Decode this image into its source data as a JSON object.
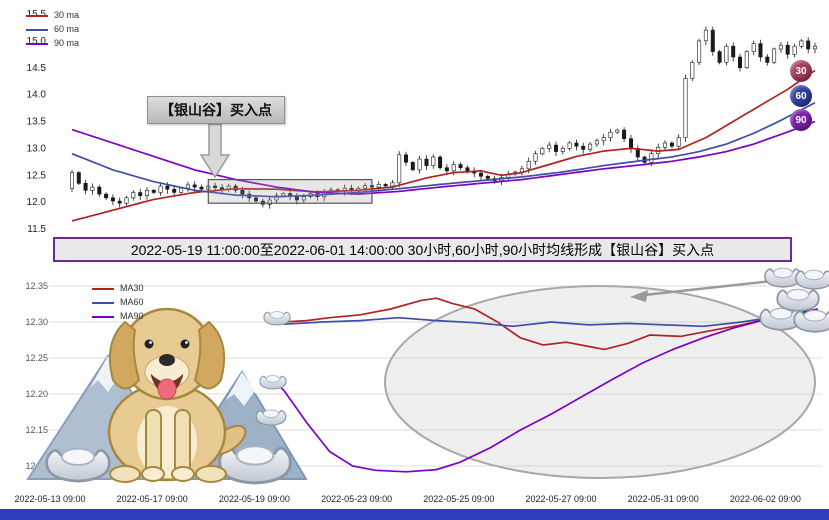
{
  "page": {
    "background": "#ffffff",
    "footer_bar_color": "#2e3cb8"
  },
  "top_chart": {
    "legend": [
      {
        "label": "30 ma",
        "color": "#b22222"
      },
      {
        "label": "60 ma",
        "color": "#3f4dab"
      },
      {
        "label": "90 ma",
        "color": "#7d00c4"
      }
    ],
    "annotation": {
      "text": "【银山谷】买入点"
    },
    "badges": [
      {
        "label": "30",
        "color": "#a73b5c"
      },
      {
        "label": "60",
        "color": "#2e3f9e"
      },
      {
        "label": "90",
        "color": "#7a1fa8"
      }
    ]
  },
  "banner": {
    "text": "2022-05-19 11:00:00至2022-06-01 14:00:00 30小时,60小时,90小时均线形成【银山谷】买入点"
  },
  "bottom_chart": {
    "legend": [
      {
        "label": "MA30",
        "color": "#b22222"
      },
      {
        "label": "MA60",
        "color": "#3f4dab"
      },
      {
        "label": "MA90",
        "color": "#7d00c4"
      }
    ]
  },
  "chart_data": [
    {
      "type": "candlestick",
      "title": "",
      "ylim": [
        11.5,
        15.5
      ],
      "yticks": [
        15.5,
        15.0,
        14.5,
        14.0,
        13.5,
        13.0,
        12.5,
        12.0,
        11.5
      ],
      "grid": false,
      "legend_position": "upper-left",
      "open_first": 12.25,
      "closes": [
        12.55,
        12.35,
        12.22,
        12.28,
        12.15,
        12.08,
        12.02,
        11.98,
        12.08,
        12.18,
        12.12,
        12.22,
        12.18,
        12.3,
        12.24,
        12.18,
        12.26,
        12.32,
        12.28,
        12.24,
        12.3,
        12.27,
        12.24,
        12.3,
        12.22,
        12.15,
        12.08,
        12.02,
        11.96,
        12.04,
        12.12,
        12.16,
        12.1,
        12.04,
        12.1,
        12.16,
        12.1,
        12.18,
        12.23,
        12.2,
        12.26,
        12.21,
        12.26,
        12.31,
        12.28,
        12.33,
        12.3,
        12.36,
        12.88,
        12.74,
        12.6,
        12.8,
        12.68,
        12.84,
        12.64,
        12.58,
        12.7,
        12.64,
        12.58,
        12.54,
        12.48,
        12.44,
        12.4,
        12.46,
        12.52,
        12.56,
        12.62,
        12.76,
        12.9,
        13.0,
        13.06,
        12.94,
        13.0,
        13.1,
        13.04,
        12.98,
        13.08,
        13.14,
        13.2,
        13.3,
        13.34,
        13.18,
        13.0,
        12.84,
        12.74,
        12.9,
        13.02,
        13.1,
        13.04,
        13.2,
        14.3,
        14.6,
        15.0,
        15.2,
        14.8,
        14.6,
        14.9,
        14.7,
        14.5,
        14.8,
        14.95,
        14.7,
        14.6,
        14.85,
        14.92,
        14.75,
        14.9,
        15.0,
        14.85,
        14.9
      ],
      "series": [
        {
          "name": "30 ma",
          "color": "#b22222",
          "keypoints": [
            [
              0,
              11.65
            ],
            [
              6,
              11.85
            ],
            [
              12,
              12.05
            ],
            [
              18,
              12.18
            ],
            [
              24,
              12.25
            ],
            [
              30,
              12.24
            ],
            [
              36,
              12.19
            ],
            [
              42,
              12.22
            ],
            [
              47,
              12.28
            ],
            [
              52,
              12.45
            ],
            [
              56,
              12.55
            ],
            [
              60,
              12.58
            ],
            [
              63,
              12.5
            ],
            [
              66,
              12.55
            ],
            [
              70,
              12.7
            ],
            [
              74,
              12.85
            ],
            [
              78,
              12.95
            ],
            [
              82,
              13.0
            ],
            [
              86,
              12.95
            ],
            [
              89,
              12.98
            ],
            [
              93,
              13.2
            ],
            [
              97,
              13.5
            ],
            [
              101,
              13.8
            ],
            [
              105,
              14.1
            ],
            [
              109,
              14.45
            ]
          ]
        },
        {
          "name": "60 ma",
          "color": "#3f4dab",
          "keypoints": [
            [
              0,
              12.9
            ],
            [
              6,
              12.6
            ],
            [
              12,
              12.38
            ],
            [
              18,
              12.22
            ],
            [
              24,
              12.13
            ],
            [
              30,
              12.1
            ],
            [
              36,
              12.13
            ],
            [
              42,
              12.18
            ],
            [
              48,
              12.25
            ],
            [
              54,
              12.33
            ],
            [
              60,
              12.4
            ],
            [
              66,
              12.47
            ],
            [
              72,
              12.56
            ],
            [
              78,
              12.68
            ],
            [
              84,
              12.78
            ],
            [
              88,
              12.84
            ],
            [
              92,
              12.94
            ],
            [
              96,
              13.08
            ],
            [
              100,
              13.28
            ],
            [
              104,
              13.52
            ],
            [
              107,
              13.72
            ],
            [
              109,
              13.85
            ]
          ]
        },
        {
          "name": "90 ma",
          "color": "#7d00c4",
          "keypoints": [
            [
              0,
              13.35
            ],
            [
              6,
              13.1
            ],
            [
              12,
              12.85
            ],
            [
              18,
              12.6
            ],
            [
              24,
              12.42
            ],
            [
              30,
              12.28
            ],
            [
              36,
              12.18
            ],
            [
              42,
              12.15
            ],
            [
              48,
              12.2
            ],
            [
              54,
              12.28
            ],
            [
              60,
              12.35
            ],
            [
              66,
              12.42
            ],
            [
              72,
              12.52
            ],
            [
              78,
              12.62
            ],
            [
              84,
              12.7
            ],
            [
              88,
              12.76
            ],
            [
              92,
              12.84
            ],
            [
              96,
              12.94
            ],
            [
              100,
              13.08
            ],
            [
              104,
              13.26
            ],
            [
              107,
              13.4
            ],
            [
              109,
              13.5
            ]
          ]
        }
      ],
      "highlight_box": {
        "x0_idx": 20,
        "x1_idx": 44,
        "v0": 11.98,
        "v1": 12.42
      }
    },
    {
      "type": "line",
      "title": "",
      "ylim": [
        12.08,
        12.37
      ],
      "yticks": [
        12.35,
        12.3,
        12.25,
        12.2,
        12.15,
        12.1
      ],
      "grid": true,
      "legend_position": "upper-left",
      "xticklabels": [
        "2022-05-13 09:00",
        "2022-05-17 09:00",
        "2022-05-19 09:00",
        "2022-05-23 09:00",
        "2022-05-25 09:00",
        "2022-05-27 09:00",
        "2022-05-31 09:00",
        "2022-06-02 09:00"
      ],
      "series": [
        {
          "name": "MA30",
          "color": "#b22222",
          "points": [
            [
              0.3,
              12.3
            ],
            [
              0.33,
              12.302
            ],
            [
              0.36,
              12.306
            ],
            [
              0.4,
              12.31
            ],
            [
              0.44,
              12.318
            ],
            [
              0.48,
              12.33
            ],
            [
              0.5,
              12.333
            ],
            [
              0.52,
              12.326
            ],
            [
              0.55,
              12.318
            ],
            [
              0.58,
              12.3
            ],
            [
              0.61,
              12.278
            ],
            [
              0.64,
              12.268
            ],
            [
              0.67,
              12.272
            ],
            [
              0.7,
              12.266
            ],
            [
              0.72,
              12.262
            ],
            [
              0.75,
              12.27
            ],
            [
              0.78,
              12.282
            ],
            [
              0.82,
              12.28
            ],
            [
              0.86,
              12.288
            ],
            [
              0.9,
              12.296
            ],
            [
              0.94,
              12.306
            ],
            [
              0.97,
              12.312
            ],
            [
              1.0,
              12.316
            ]
          ]
        },
        {
          "name": "MA60",
          "color": "#3f4dab",
          "points": [
            [
              0.3,
              12.297
            ],
            [
              0.35,
              12.3
            ],
            [
              0.4,
              12.302
            ],
            [
              0.45,
              12.306
            ],
            [
              0.5,
              12.302
            ],
            [
              0.55,
              12.299
            ],
            [
              0.6,
              12.294
            ],
            [
              0.65,
              12.3
            ],
            [
              0.7,
              12.296
            ],
            [
              0.75,
              12.298
            ],
            [
              0.8,
              12.296
            ],
            [
              0.85,
              12.294
            ],
            [
              0.9,
              12.3
            ],
            [
              0.95,
              12.308
            ],
            [
              1.0,
              12.315
            ]
          ]
        },
        {
          "name": "MA90",
          "color": "#7d00c4",
          "points": [
            [
              0.28,
              12.225
            ],
            [
              0.3,
              12.205
            ],
            [
              0.33,
              12.16
            ],
            [
              0.36,
              12.12
            ],
            [
              0.39,
              12.1
            ],
            [
              0.42,
              12.094
            ],
            [
              0.46,
              12.092
            ],
            [
              0.5,
              12.095
            ],
            [
              0.53,
              12.105
            ],
            [
              0.57,
              12.125
            ],
            [
              0.61,
              12.15
            ],
            [
              0.65,
              12.172
            ],
            [
              0.69,
              12.196
            ],
            [
              0.73,
              12.22
            ],
            [
              0.77,
              12.243
            ],
            [
              0.81,
              12.262
            ],
            [
              0.85,
              12.278
            ],
            [
              0.89,
              12.292
            ],
            [
              0.93,
              12.303
            ],
            [
              0.97,
              12.312
            ],
            [
              1.0,
              12.318
            ]
          ]
        }
      ]
    }
  ]
}
